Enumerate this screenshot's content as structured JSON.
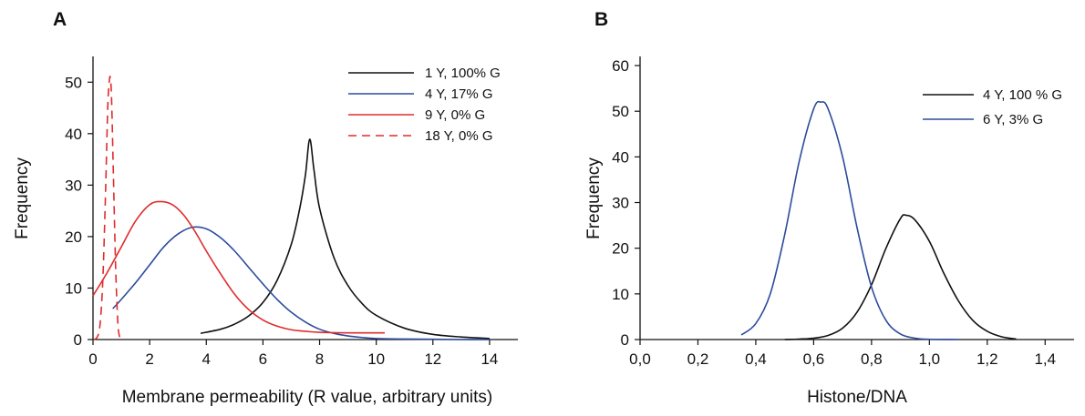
{
  "chart_data": [
    {
      "panel": "A",
      "type": "line",
      "xlabel": "Membrane permeability (R value, arbitrary units)",
      "ylabel": "Frequency",
      "xlim": [
        0,
        15
      ],
      "ylim": [
        0,
        55
      ],
      "xticks": [
        "0",
        "2",
        "4",
        "6",
        "8",
        "10",
        "12",
        "14"
      ],
      "yticks": [
        "0",
        "10",
        "20",
        "30",
        "40",
        "50"
      ],
      "legend_position": "top-right",
      "series": [
        {
          "name": "1 Y, 100% G",
          "color": "#111111",
          "dash": "solid",
          "x": [
            3.8,
            4.5,
            5.0,
            5.5,
            6.0,
            6.5,
            7.0,
            7.3,
            7.5,
            7.65,
            7.8,
            8.0,
            8.5,
            9.0,
            9.5,
            10.0,
            11.0,
            12.0,
            13.0,
            14.0
          ],
          "y": [
            1.2,
            2.0,
            3.0,
            4.6,
            7.2,
            11.5,
            18.5,
            25.5,
            32.0,
            38.9,
            33.0,
            25.5,
            16.0,
            10.5,
            7.0,
            4.7,
            2.2,
            1.0,
            0.5,
            0.2
          ]
        },
        {
          "name": "4 Y, 17% G",
          "color": "#2b4b9b",
          "dash": "solid",
          "x": [
            0.7,
            1.0,
            1.5,
            2.0,
            2.5,
            3.0,
            3.5,
            4.0,
            4.5,
            5.0,
            5.5,
            6.0,
            6.5,
            7.0,
            7.5,
            8.0,
            8.5,
            9.0,
            9.5,
            10.0,
            11.0,
            12.0,
            13.0,
            14.0
          ],
          "y": [
            6.0,
            7.8,
            11.0,
            14.5,
            18.0,
            20.5,
            21.8,
            21.5,
            19.8,
            17.2,
            14.0,
            10.8,
            7.8,
            5.3,
            3.4,
            2.0,
            1.2,
            0.7,
            0.4,
            0.2,
            0.1,
            0.05,
            0.0,
            0.0
          ]
        },
        {
          "name": "9 Y, 0% G",
          "color": "#e02b2b",
          "dash": "solid",
          "x": [
            0.0,
            0.5,
            1.0,
            1.5,
            2.0,
            2.4,
            2.8,
            3.2,
            3.6,
            4.0,
            4.5,
            5.0,
            5.5,
            6.0,
            6.5,
            7.0,
            7.5,
            8.0,
            9.0,
            10.0,
            10.3
          ],
          "y": [
            8.5,
            13.0,
            18.0,
            23.0,
            26.2,
            26.8,
            26.2,
            24.2,
            21.0,
            17.2,
            12.8,
            8.8,
            5.8,
            3.8,
            2.6,
            1.9,
            1.6,
            1.4,
            1.3,
            1.3,
            1.3
          ]
        },
        {
          "name": "18 Y, 0% G",
          "color": "#e02b2b",
          "dash": "dashed",
          "x": [
            0.02,
            0.15,
            0.25,
            0.35,
            0.45,
            0.52,
            0.58,
            0.62,
            0.66,
            0.72,
            0.8,
            0.88,
            0.95
          ],
          "y": [
            0.0,
            0.5,
            3.0,
            12.0,
            30.0,
            45.0,
            50.5,
            50.5,
            46.0,
            32.0,
            14.0,
            3.0,
            0.3
          ]
        }
      ]
    },
    {
      "panel": "B",
      "type": "line",
      "xlabel": "Histone/DNA",
      "ylabel": "Frequency",
      "xlim": [
        0.0,
        1.5
      ],
      "ylim": [
        0,
        62
      ],
      "xticks": [
        "0,0",
        "0,2",
        "0,4",
        "0,6",
        "0,8",
        "1,0",
        "1,2",
        "1,4"
      ],
      "yticks": [
        "0",
        "10",
        "20",
        "30",
        "40",
        "50",
        "60"
      ],
      "legend_position": "top-right",
      "series": [
        {
          "name": "4 Y, 100 % G",
          "color": "#111111",
          "dash": "solid",
          "x": [
            0.5,
            0.55,
            0.6,
            0.65,
            0.7,
            0.75,
            0.8,
            0.85,
            0.9,
            0.92,
            0.95,
            1.0,
            1.05,
            1.1,
            1.15,
            1.2,
            1.25,
            1.3
          ],
          "y": [
            0.0,
            0.1,
            0.3,
            0.9,
            2.5,
            6.0,
            12.0,
            20.0,
            26.5,
            27.2,
            26.2,
            21.5,
            14.5,
            8.5,
            4.2,
            1.8,
            0.6,
            0.1
          ]
        },
        {
          "name": "6 Y, 3% G",
          "color": "#2b4b9b",
          "dash": "solid",
          "x": [
            0.35,
            0.4,
            0.45,
            0.5,
            0.55,
            0.6,
            0.625,
            0.65,
            0.7,
            0.75,
            0.8,
            0.85,
            0.9,
            0.95,
            1.0,
            1.1
          ],
          "y": [
            1.0,
            3.5,
            10.0,
            23.0,
            39.0,
            50.5,
            52.0,
            50.5,
            40.0,
            24.5,
            11.5,
            4.2,
            1.2,
            0.3,
            0.05,
            0.0
          ]
        }
      ]
    }
  ]
}
